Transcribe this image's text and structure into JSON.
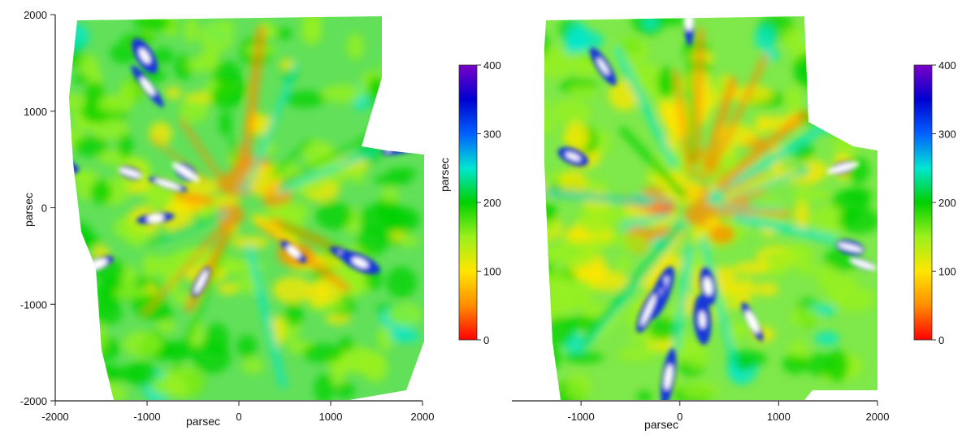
{
  "chart_data": [
    {
      "type": "heatmap",
      "xlabel": "parsec",
      "ylabel": "parsec",
      "xlim": [
        -2000,
        2000
      ],
      "ylim": [
        -2000,
        2000
      ],
      "x_ticks": [
        "-2000",
        "-1000",
        "0",
        "1000",
        "2000"
      ],
      "y_ticks": [
        "2000",
        "1000",
        "0",
        "-1000",
        "-2000"
      ],
      "colorbar": {
        "label": "parsec",
        "range": [
          0,
          400
        ],
        "ticks": [
          "400",
          "300",
          "200",
          "100",
          "0"
        ],
        "colors": [
          "#ff0000",
          "#ff8c00",
          "#ffe600",
          "#9af01c",
          "#00d000",
          "#00e6d2",
          "#0060ff",
          "#0000d0",
          "#7a00c8"
        ]
      },
      "description_values": {
        "typical": 150,
        "min": 0,
        "max": 400
      }
    },
    {
      "type": "heatmap",
      "xlabel": "parsec",
      "ylabel": "",
      "xlim": [
        -1700,
        2000
      ],
      "ylim": [
        -2000,
        2000
      ],
      "x_ticks": [
        "-1000",
        "0",
        "1000",
        "2000"
      ],
      "y_ticks": [],
      "colorbar": {
        "label": "",
        "range": [
          0,
          400
        ],
        "ticks": [
          "400",
          "300",
          "200",
          "100",
          "0"
        ],
        "colors": [
          "#ff0000",
          "#ff8c00",
          "#ffe600",
          "#9af01c",
          "#00d000",
          "#00e6d2",
          "#0060ff",
          "#0000d0",
          "#7a00c8"
        ]
      },
      "description_values": {
        "typical": 130,
        "min": 0,
        "max": 400
      }
    }
  ]
}
